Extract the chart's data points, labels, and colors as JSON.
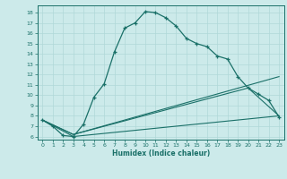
{
  "title": "",
  "xlabel": "Humidex (Indice chaleur)",
  "bg_color": "#cceaea",
  "line_color": "#1a7068",
  "grid_color": "#b0d8d8",
  "xlim": [
    -0.5,
    23.5
  ],
  "ylim": [
    5.7,
    18.7
  ],
  "xticks": [
    0,
    1,
    2,
    3,
    4,
    5,
    6,
    7,
    8,
    9,
    10,
    11,
    12,
    13,
    14,
    15,
    16,
    17,
    18,
    19,
    20,
    21,
    22,
    23
  ],
  "yticks": [
    6,
    7,
    8,
    9,
    10,
    11,
    12,
    13,
    14,
    15,
    16,
    17,
    18
  ],
  "line1_x": [
    0,
    1,
    2,
    3,
    4,
    5,
    6,
    7,
    8,
    9,
    10,
    11,
    12,
    13,
    14,
    15,
    16,
    17,
    18,
    19,
    20,
    21,
    22,
    23
  ],
  "line1_y": [
    7.6,
    7.0,
    6.1,
    6.0,
    7.2,
    9.8,
    11.1,
    14.2,
    16.5,
    17.0,
    18.1,
    18.0,
    17.5,
    16.7,
    15.5,
    15.0,
    14.7,
    13.8,
    13.5,
    11.8,
    10.7,
    10.1,
    9.5,
    7.9
  ],
  "line2_x": [
    0,
    3,
    23
  ],
  "line2_y": [
    7.6,
    6.0,
    8.0
  ],
  "line3_x": [
    0,
    3,
    23
  ],
  "line3_y": [
    7.6,
    6.2,
    11.8
  ],
  "line4_x": [
    0,
    3,
    20,
    23
  ],
  "line4_y": [
    7.6,
    6.2,
    10.7,
    8.0
  ]
}
